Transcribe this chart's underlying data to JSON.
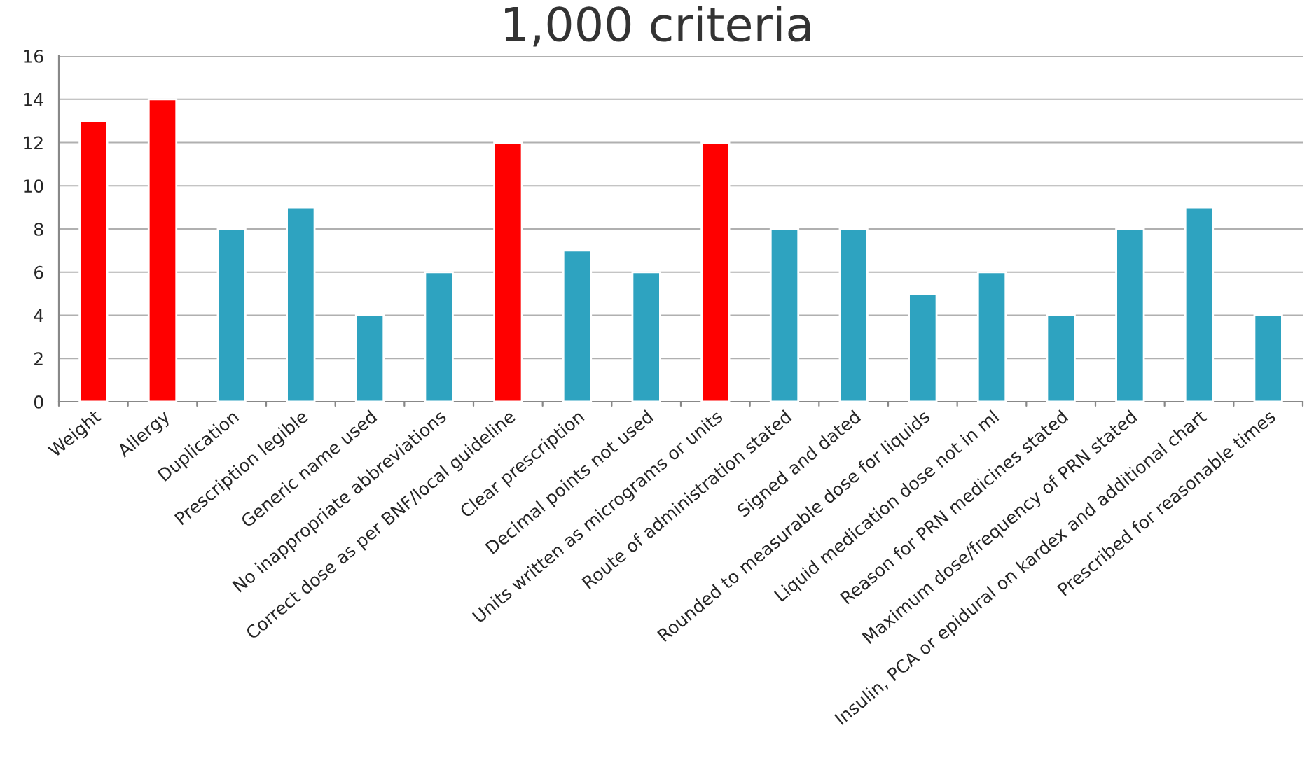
{
  "chart_data": {
    "type": "bar",
    "title": "1,000 criteria",
    "categories": [
      "Weight",
      "Allergy",
      "Duplication",
      "Prescription legible",
      "Generic name used",
      "No inappropriate abbreviations",
      "Correct dose as per BNF/local guideline",
      "Clear prescription",
      "Decimal points not used",
      "Units written as micrograms or units",
      "Route of administration stated",
      "Signed and dated",
      "Rounded to measurable dose for liquids",
      "Liquid medication dose not in ml",
      "Reason for PRN medicines stated",
      "Maximum dose/frequency of PRN stated",
      "Insulin, PCA or epidural on kardex and additional chart",
      "Prescribed for reasonable times"
    ],
    "values": [
      13,
      14,
      8,
      9,
      4,
      6,
      12,
      7,
      6,
      12,
      8,
      8,
      5,
      6,
      4,
      8,
      9,
      4
    ],
    "colors": [
      "#ff0000",
      "#ff0000",
      "#2ea3c0",
      "#2ea3c0",
      "#2ea3c0",
      "#2ea3c0",
      "#ff0000",
      "#2ea3c0",
      "#2ea3c0",
      "#ff0000",
      "#2ea3c0",
      "#2ea3c0",
      "#2ea3c0",
      "#2ea3c0",
      "#2ea3c0",
      "#2ea3c0",
      "#2ea3c0",
      "#2ea3c0"
    ],
    "ylim": [
      0,
      16
    ],
    "yticks": [
      0,
      2,
      4,
      6,
      8,
      10,
      12,
      14,
      16
    ],
    "grid": "y",
    "legend": false
  }
}
